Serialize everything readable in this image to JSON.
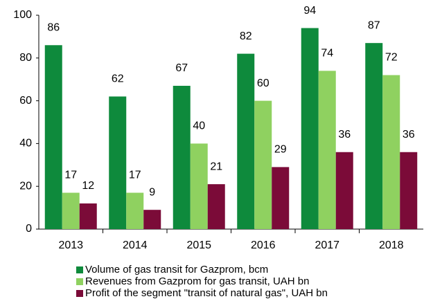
{
  "chart_data": {
    "type": "bar",
    "categories": [
      "2013",
      "2014",
      "2015",
      "2016",
      "2017",
      "2018"
    ],
    "series": [
      {
        "name": "Volume of gas transit for Gazprom, bcm",
        "color": "#0e8a3c",
        "values": [
          86,
          62,
          67,
          82,
          94,
          87
        ]
      },
      {
        "name": "Revenues from Gazprom for gas transit, UAH bn",
        "color": "#8fd160",
        "values": [
          17,
          17,
          40,
          60,
          74,
          72
        ]
      },
      {
        "name": "Profit of the segment \"transit of natural gas\", UAH bn",
        "color": "#7b0b38",
        "values": [
          12,
          9,
          21,
          29,
          36,
          36
        ]
      }
    ],
    "ylim": [
      0,
      100
    ],
    "yticks": [
      0,
      20,
      40,
      60,
      80,
      100
    ],
    "grid": false,
    "legend": "bottom"
  }
}
